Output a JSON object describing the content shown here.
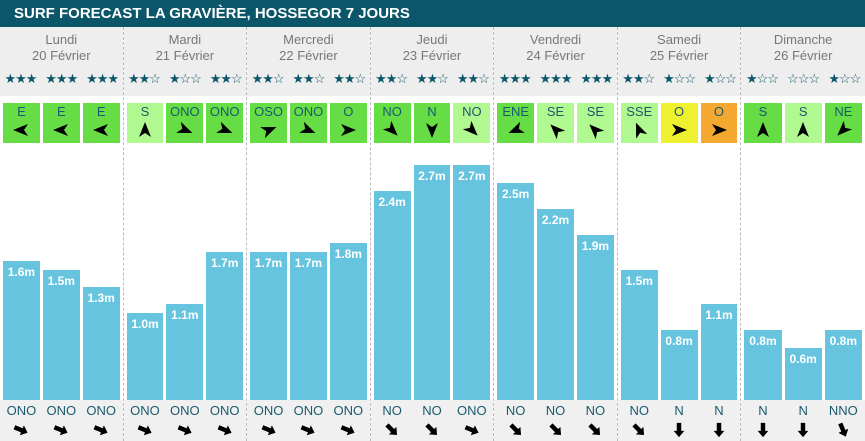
{
  "title": "SURF FORECAST LA GRAVIÈRE, HOSSEGOR 7 JOURS",
  "colors": {
    "header": "#0b5669",
    "bar": "#66c4df",
    "wind_good": "#66dd44",
    "wind_ok": "#b0f890",
    "wind_medium": "#eef030",
    "wind_bad": "#f5a830"
  },
  "days": [
    {
      "name": "Lundi",
      "date": "20 Février",
      "slots": [
        {
          "stars": 3,
          "wind": "E",
          "wind_color": "#66dd44",
          "height": 1.6,
          "height_label": "1.6m",
          "swell": "ONO"
        },
        {
          "stars": 3,
          "wind": "E",
          "wind_color": "#66dd44",
          "height": 1.5,
          "height_label": "1.5m",
          "swell": "ONO"
        },
        {
          "stars": 3,
          "wind": "E",
          "wind_color": "#66dd44",
          "height": 1.3,
          "height_label": "1.3m",
          "swell": "ONO"
        }
      ]
    },
    {
      "name": "Mardi",
      "date": "21 Février",
      "slots": [
        {
          "stars": 2,
          "wind": "S",
          "wind_color": "#b0f890",
          "height": 1.0,
          "height_label": "1.0m",
          "swell": "ONO"
        },
        {
          "stars": 1,
          "wind": "ONO",
          "wind_color": "#66dd44",
          "height": 1.1,
          "height_label": "1.1m",
          "swell": "ONO"
        },
        {
          "stars": 2,
          "wind": "ONO",
          "wind_color": "#66dd44",
          "height": 1.7,
          "height_label": "1.7m",
          "swell": "ONO"
        }
      ]
    },
    {
      "name": "Mercredi",
      "date": "22 Février",
      "slots": [
        {
          "stars": 2,
          "wind": "OSO",
          "wind_color": "#66dd44",
          "height": 1.7,
          "height_label": "1.7m",
          "swell": "ONO"
        },
        {
          "stars": 2,
          "wind": "ONO",
          "wind_color": "#66dd44",
          "height": 1.7,
          "height_label": "1.7m",
          "swell": "ONO"
        },
        {
          "stars": 2,
          "wind": "O",
          "wind_color": "#66dd44",
          "height": 1.8,
          "height_label": "1.8m",
          "swell": "ONO"
        }
      ]
    },
    {
      "name": "Jeudi",
      "date": "23 Février",
      "slots": [
        {
          "stars": 2,
          "wind": "NO",
          "wind_color": "#66dd44",
          "height": 2.4,
          "height_label": "2.4m",
          "swell": "NO"
        },
        {
          "stars": 2,
          "wind": "N",
          "wind_color": "#66dd44",
          "height": 2.7,
          "height_label": "2.7m",
          "swell": "NO"
        },
        {
          "stars": 2,
          "wind": "NO",
          "wind_color": "#b0f890",
          "height": 2.7,
          "height_label": "2.7m",
          "swell": "ONO"
        }
      ]
    },
    {
      "name": "Vendredi",
      "date": "24 Février",
      "slots": [
        {
          "stars": 3,
          "wind": "ENE",
          "wind_color": "#66dd44",
          "height": 2.5,
          "height_label": "2.5m",
          "swell": "NO"
        },
        {
          "stars": 3,
          "wind": "SE",
          "wind_color": "#b0f890",
          "height": 2.2,
          "height_label": "2.2m",
          "swell": "NO"
        },
        {
          "stars": 3,
          "wind": "SE",
          "wind_color": "#b0f890",
          "height": 1.9,
          "height_label": "1.9m",
          "swell": "NO"
        }
      ]
    },
    {
      "name": "Samedi",
      "date": "25 Février",
      "slots": [
        {
          "stars": 2,
          "wind": "SSE",
          "wind_color": "#b0f890",
          "height": 1.5,
          "height_label": "1.5m",
          "swell": "NO"
        },
        {
          "stars": 1,
          "wind": "O",
          "wind_color": "#eef030",
          "height": 0.8,
          "height_label": "0.8m",
          "swell": "N"
        },
        {
          "stars": 1,
          "wind": "O",
          "wind_color": "#f5a830",
          "height": 1.1,
          "height_label": "1.1m",
          "swell": "N"
        }
      ]
    },
    {
      "name": "Dimanche",
      "date": "26 Février",
      "slots": [
        {
          "stars": 1,
          "wind": "S",
          "wind_color": "#66dd44",
          "height": 0.8,
          "height_label": "0.8m",
          "swell": "N"
        },
        {
          "stars": 0,
          "wind": "S",
          "wind_color": "#b0f890",
          "height": 0.6,
          "height_label": "0.6m",
          "swell": "N"
        },
        {
          "stars": 1,
          "wind": "NE",
          "wind_color": "#66dd44",
          "height": 0.8,
          "height_label": "0.8m",
          "swell": "NNO"
        }
      ]
    }
  ]
}
